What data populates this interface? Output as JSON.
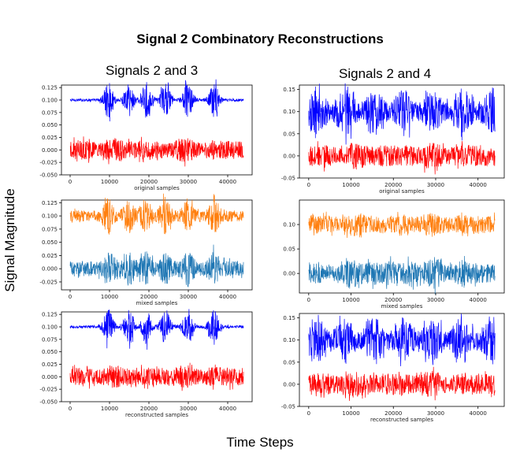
{
  "figure": {
    "title": "Signal 2 Combinatory Reconstructions",
    "ylabel": "Signal Magnitude",
    "xlabel": "Time Steps",
    "columns": [
      {
        "title": "Signals 2 and 3"
      },
      {
        "title": "Signals 2 and 4"
      }
    ]
  },
  "chart_data": [
    {
      "type": "line",
      "column": "Signals 2 and 3",
      "xlabel": "original samples",
      "x_range": [
        0,
        44000
      ],
      "x_ticks": [
        0,
        10000,
        20000,
        30000,
        40000
      ],
      "ylim": [
        -0.05,
        0.13
      ],
      "y_ticks": [
        -0.05,
        -0.025,
        0.0,
        0.025,
        0.05,
        0.075,
        0.1,
        0.125
      ],
      "tick_decimals": 3,
      "grid": false,
      "series": [
        {
          "color": "#0000ff",
          "baseline": 0.1,
          "amplitude": 0.035,
          "envelope": "bursts"
        },
        {
          "color": "#ff0000",
          "baseline": 0.0,
          "amplitude": 0.035,
          "envelope": "noise"
        }
      ]
    },
    {
      "type": "line",
      "column": "Signals 2 and 4",
      "xlabel": "original samples",
      "x_range": [
        0,
        44000
      ],
      "x_ticks": [
        0,
        10000,
        20000,
        30000,
        40000
      ],
      "ylim": [
        -0.05,
        0.16
      ],
      "y_ticks": [
        -0.05,
        0.0,
        0.05,
        0.1,
        0.15
      ],
      "tick_decimals": 2,
      "grid": false,
      "series": [
        {
          "color": "#0000ff",
          "baseline": 0.1,
          "amplitude": 0.06,
          "envelope": "dense"
        },
        {
          "color": "#ff0000",
          "baseline": 0.0,
          "amplitude": 0.045,
          "envelope": "noise"
        }
      ]
    },
    {
      "type": "line",
      "column": "Signals 2 and 3",
      "xlabel": "mixed samples",
      "x_range": [
        0,
        44000
      ],
      "x_ticks": [
        0,
        10000,
        20000,
        30000,
        40000
      ],
      "ylim": [
        -0.04,
        0.13
      ],
      "y_ticks": [
        -0.025,
        0.0,
        0.025,
        0.05,
        0.075,
        0.1,
        0.125
      ],
      "tick_decimals": 3,
      "grid": false,
      "series": [
        {
          "color": "#ff7f0e",
          "baseline": 0.1,
          "amplitude": 0.035,
          "envelope": "bursts_noise"
        },
        {
          "color": "#1f77b4",
          "baseline": 0.0,
          "amplitude": 0.035,
          "envelope": "noise_bursts"
        }
      ]
    },
    {
      "type": "line",
      "column": "Signals 2 and 4",
      "xlabel": "mixed samples",
      "x_range": [
        0,
        44000
      ],
      "x_ticks": [
        0,
        10000,
        20000,
        30000,
        40000
      ],
      "ylim": [
        -0.04,
        0.15
      ],
      "y_ticks": [
        0.0,
        0.05,
        0.1
      ],
      "tick_decimals": 2,
      "grid": false,
      "series": [
        {
          "color": "#ff7f0e",
          "baseline": 0.1,
          "amplitude": 0.035,
          "envelope": "noise"
        },
        {
          "color": "#1f77b4",
          "baseline": 0.0,
          "amplitude": 0.035,
          "envelope": "noise_dense"
        }
      ]
    },
    {
      "type": "line",
      "column": "Signals 2 and 3",
      "xlabel": "reconstructed samples",
      "x_range": [
        0,
        44000
      ],
      "x_ticks": [
        0,
        10000,
        20000,
        30000,
        40000
      ],
      "ylim": [
        -0.05,
        0.13
      ],
      "y_ticks": [
        -0.05,
        -0.025,
        0.0,
        0.025,
        0.05,
        0.075,
        0.1,
        0.125
      ],
      "tick_decimals": 3,
      "grid": false,
      "series": [
        {
          "color": "#0000ff",
          "baseline": 0.1,
          "amplitude": 0.035,
          "envelope": "bursts"
        },
        {
          "color": "#ff0000",
          "baseline": 0.0,
          "amplitude": 0.035,
          "envelope": "noise"
        }
      ]
    },
    {
      "type": "line",
      "column": "Signals 2 and 4",
      "xlabel": "reconstructed samples",
      "x_range": [
        0,
        44000
      ],
      "x_ticks": [
        0,
        10000,
        20000,
        30000,
        40000
      ],
      "ylim": [
        -0.05,
        0.16
      ],
      "y_ticks": [
        -0.05,
        0.0,
        0.05,
        0.1,
        0.15
      ],
      "tick_decimals": 2,
      "grid": false,
      "series": [
        {
          "color": "#0000ff",
          "baseline": 0.1,
          "amplitude": 0.06,
          "envelope": "dense"
        },
        {
          "color": "#ff0000",
          "baseline": 0.0,
          "amplitude": 0.045,
          "envelope": "noise"
        }
      ]
    }
  ]
}
